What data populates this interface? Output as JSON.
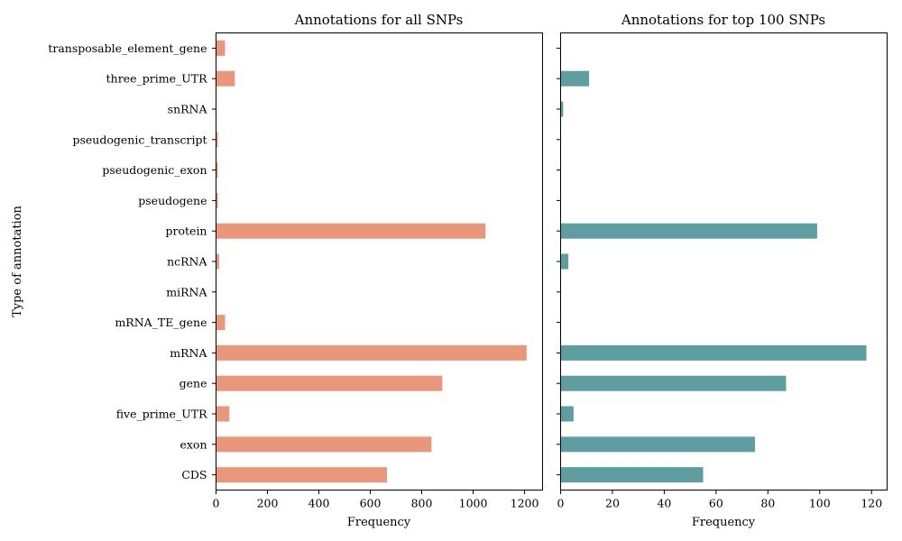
{
  "chart_data": [
    {
      "type": "bar",
      "orientation": "horizontal",
      "title": "Annotations for all SNPs",
      "xlabel": "Frequency",
      "ylabel": "Type of annotation",
      "xlim": [
        0,
        1270
      ],
      "xticks": [
        0,
        200,
        400,
        600,
        800,
        1000,
        1200
      ],
      "color": "#E9967A",
      "grid": false,
      "categories": [
        "transposable_element_gene",
        "three_prime_UTR",
        "snRNA",
        "pseudogenic_transcript",
        "pseudogenic_exon",
        "pseudogene",
        "protein",
        "ncRNA",
        "miRNA",
        "mRNA_TE_gene",
        "mRNA",
        "gene",
        "five_prime_UTR",
        "exon",
        "CDS"
      ],
      "values": [
        35,
        73,
        1,
        7,
        7,
        7,
        1048,
        12,
        1,
        35,
        1208,
        880,
        52,
        838,
        665
      ]
    },
    {
      "type": "bar",
      "orientation": "horizontal",
      "title": "Annotations for top 100 SNPs",
      "xlabel": "Frequency",
      "ylabel": "",
      "xlim": [
        0,
        126
      ],
      "xticks": [
        0,
        20,
        40,
        60,
        80,
        100,
        120
      ],
      "color": "#5F9EA0",
      "grid": false,
      "categories": [
        "transposable_element_gene",
        "three_prime_UTR",
        "snRNA",
        "pseudogenic_transcript",
        "pseudogenic_exon",
        "pseudogene",
        "protein",
        "ncRNA",
        "miRNA",
        "mRNA_TE_gene",
        "mRNA",
        "gene",
        "five_prime_UTR",
        "exon",
        "CDS"
      ],
      "values": [
        0,
        11,
        1,
        0,
        0,
        0,
        99,
        3,
        0,
        0,
        118,
        87,
        5,
        75,
        55
      ]
    }
  ]
}
